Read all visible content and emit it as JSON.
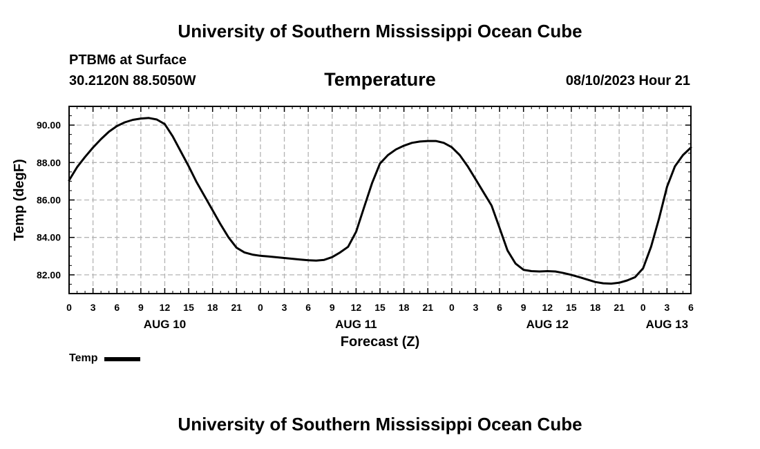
{
  "header": {
    "title": "University of Southern Mississippi Ocean Cube",
    "station": "PTBM6 at Surface",
    "coords": "30.2120N  88.5050W",
    "datetime": "08/10/2023 Hour 21"
  },
  "footer": {
    "title": "University of Southern Mississippi Ocean Cube"
  },
  "legend": {
    "label": "Temp"
  },
  "chart_data": {
    "type": "line",
    "title": "Temperature",
    "xlabel": "Forecast (Z)",
    "ylabel": "Temp (degF)",
    "grid": true,
    "xlim": [
      0,
      78
    ],
    "ylim": [
      81.0,
      91.0
    ],
    "x_ticks": [
      0,
      3,
      6,
      9,
      12,
      15,
      18,
      21,
      24,
      27,
      30,
      33,
      36,
      39,
      42,
      45,
      48,
      51,
      54,
      57,
      60,
      63,
      66,
      69,
      72,
      75,
      78
    ],
    "x_tick_labels": [
      "0",
      "3",
      "6",
      "9",
      "12",
      "15",
      "18",
      "21",
      "0",
      "3",
      "6",
      "9",
      "12",
      "15",
      "18",
      "21",
      "0",
      "3",
      "6",
      "9",
      "12",
      "15",
      "18",
      "21",
      "0",
      "3",
      "6"
    ],
    "y_ticks": [
      82,
      84,
      86,
      88,
      90
    ],
    "y_tick_labels": [
      "82.00",
      "84.00",
      "86.00",
      "88.00",
      "90.00"
    ],
    "date_labels": [
      {
        "x": 12,
        "label": "AUG 10"
      },
      {
        "x": 36,
        "label": "AUG 11"
      },
      {
        "x": 60,
        "label": "AUG 12"
      },
      {
        "x": 75,
        "label": "AUG 13"
      }
    ],
    "series": [
      {
        "name": "Temp",
        "color": "#000000",
        "x": [
          0,
          1,
          2,
          3,
          4,
          5,
          6,
          7,
          8,
          9,
          10,
          11,
          12,
          13,
          14,
          15,
          16,
          17,
          18,
          19,
          20,
          21,
          22,
          23,
          24,
          25,
          26,
          27,
          28,
          29,
          30,
          31,
          32,
          33,
          34,
          35,
          36,
          37,
          38,
          39,
          40,
          41,
          42,
          43,
          44,
          45,
          46,
          47,
          48,
          49,
          50,
          51,
          52,
          53,
          54,
          55,
          56,
          57,
          58,
          59,
          60,
          61,
          62,
          63,
          64,
          65,
          66,
          67,
          68,
          69,
          70,
          71,
          72,
          73,
          74,
          75,
          76,
          77,
          78
        ],
        "values": [
          87.05,
          87.75,
          88.3,
          88.8,
          89.25,
          89.65,
          89.95,
          90.15,
          90.28,
          90.35,
          90.38,
          90.3,
          90.05,
          89.4,
          88.6,
          87.8,
          86.95,
          86.2,
          85.45,
          84.7,
          84.0,
          83.45,
          83.2,
          83.08,
          83.02,
          82.98,
          82.94,
          82.9,
          82.86,
          82.82,
          82.78,
          82.76,
          82.8,
          82.95,
          83.2,
          83.5,
          84.3,
          85.6,
          86.9,
          87.95,
          88.4,
          88.7,
          88.9,
          89.05,
          89.12,
          89.15,
          89.15,
          89.05,
          88.82,
          88.4,
          87.8,
          87.1,
          86.4,
          85.7,
          84.5,
          83.3,
          82.6,
          82.27,
          82.2,
          82.18,
          82.2,
          82.18,
          82.1,
          82.0,
          81.88,
          81.75,
          81.62,
          81.55,
          81.53,
          81.58,
          81.7,
          81.88,
          82.35,
          83.5,
          85.0,
          86.7,
          87.8,
          88.4,
          88.8
        ]
      }
    ]
  }
}
